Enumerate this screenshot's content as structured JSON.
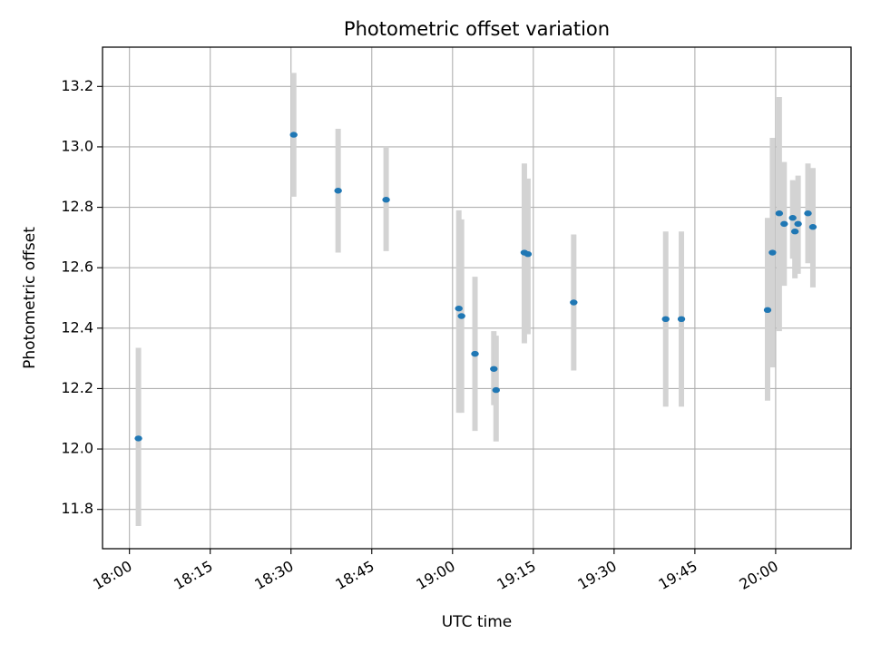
{
  "chart_data": {
    "type": "scatter",
    "title": "Photometric offset variation",
    "xlabel": "UTC time",
    "ylabel": "Photometric offset",
    "x_ticks": [
      "18:00",
      "18:15",
      "18:30",
      "18:45",
      "19:00",
      "19:15",
      "19:30",
      "19:45",
      "20:00"
    ],
    "y_ticks": [
      "11.8",
      "12.0",
      "12.2",
      "12.4",
      "12.6",
      "12.8",
      "13.0",
      "13.2"
    ],
    "x_domain": [
      "17:55",
      "20:14"
    ],
    "ylim": [
      11.67,
      13.33
    ],
    "grid": true,
    "colors": {
      "points": "#1f77b4",
      "errorbars": "#d3d3d3",
      "grid": "#b0b0b0"
    },
    "points": [
      {
        "x": "18:01:40",
        "y": 12.035,
        "lo": 11.745,
        "hi": 12.335
      },
      {
        "x": "18:30:30",
        "y": 13.04,
        "lo": 12.835,
        "hi": 13.245
      },
      {
        "x": "18:38:45",
        "y": 12.855,
        "lo": 12.65,
        "hi": 13.06
      },
      {
        "x": "18:47:40",
        "y": 12.825,
        "lo": 12.655,
        "hi": 13.0
      },
      {
        "x": "19:01:10",
        "y": 12.465,
        "lo": 12.12,
        "hi": 12.79
      },
      {
        "x": "19:01:40",
        "y": 12.44,
        "lo": 12.12,
        "hi": 12.76
      },
      {
        "x": "19:04:10",
        "y": 12.315,
        "lo": 12.06,
        "hi": 12.57
      },
      {
        "x": "19:07:40",
        "y": 12.265,
        "lo": 12.145,
        "hi": 12.39
      },
      {
        "x": "19:08:05",
        "y": 12.195,
        "lo": 12.025,
        "hi": 12.375
      },
      {
        "x": "19:13:20",
        "y": 12.65,
        "lo": 12.35,
        "hi": 12.945
      },
      {
        "x": "19:14:00",
        "y": 12.645,
        "lo": 12.38,
        "hi": 12.895
      },
      {
        "x": "19:22:30",
        "y": 12.485,
        "lo": 12.26,
        "hi": 12.71
      },
      {
        "x": "19:39:35",
        "y": 12.43,
        "lo": 12.14,
        "hi": 12.72
      },
      {
        "x": "19:42:30",
        "y": 12.43,
        "lo": 12.14,
        "hi": 12.72
      },
      {
        "x": "19:58:30",
        "y": 12.46,
        "lo": 12.16,
        "hi": 12.765
      },
      {
        "x": "19:59:25",
        "y": 12.65,
        "lo": 12.27,
        "hi": 13.03
      },
      {
        "x": "20:00:40",
        "y": 12.78,
        "lo": 12.39,
        "hi": 13.165
      },
      {
        "x": "20:01:35",
        "y": 12.745,
        "lo": 12.54,
        "hi": 12.95
      },
      {
        "x": "20:03:10",
        "y": 12.765,
        "lo": 12.63,
        "hi": 12.89
      },
      {
        "x": "20:03:35",
        "y": 12.72,
        "lo": 12.565,
        "hi": 12.885
      },
      {
        "x": "20:04:10",
        "y": 12.745,
        "lo": 12.58,
        "hi": 12.905
      },
      {
        "x": "20:06:00",
        "y": 12.78,
        "lo": 12.615,
        "hi": 12.945
      },
      {
        "x": "20:06:55",
        "y": 12.735,
        "lo": 12.535,
        "hi": 12.93
      }
    ]
  }
}
